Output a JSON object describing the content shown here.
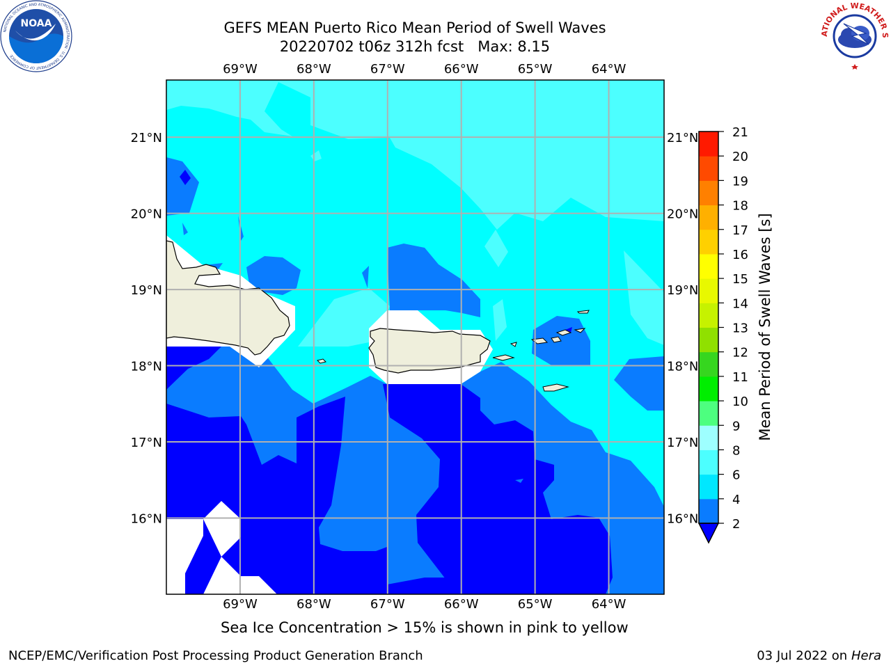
{
  "header": {
    "title": "GEFS MEAN Puerto Rico Mean Period of Swell Waves",
    "subtitle": "20220702 t06z 312h fcst   Max: 8.15"
  },
  "logos": {
    "noaa_text": "NOAA",
    "noaa_ring_text": "NATIONAL OCEANIC AND ATMOSPHERIC ADMINISTRATION · U.S. DEPARTMENT OF COMMERCE",
    "nws_ring_text": "NATIONAL WEATHER SERVICE"
  },
  "map": {
    "lon_labels": [
      "69°W",
      "68°W",
      "67°W",
      "66°W",
      "65°W",
      "64°W"
    ],
    "lat_labels": [
      "21°N",
      "20°N",
      "19°N",
      "18°N",
      "17°N",
      "16°N"
    ],
    "lon_values": [
      -69,
      -68,
      -67,
      -66,
      -65,
      -64
    ],
    "lat_values": [
      21,
      20,
      19,
      18,
      17,
      16
    ],
    "extent": {
      "lon_min": -70.0,
      "lon_max": -63.25,
      "lat_min": 15.0,
      "lat_max": 21.75
    },
    "gridlines": true
  },
  "colorbar": {
    "label": "Mean Period of Swell Waves [s]",
    "ticks": [
      "2",
      "4",
      "6",
      "8",
      "9",
      "10",
      "11",
      "12",
      "13",
      "14",
      "15",
      "16",
      "17",
      "18",
      "19",
      "20",
      "21"
    ],
    "colors": [
      "#0000ff",
      "#0a7cff",
      "#00e7ff",
      "#4cffff",
      "#9effff",
      "#4dff7f",
      "#00ee00",
      "#36d61f",
      "#90e000",
      "#c6f200",
      "#e8f800",
      "#ffff00",
      "#ffd000",
      "#ffb000",
      "#ff8000",
      "#ff4a00",
      "#ff1a00",
      "#ff0000"
    ],
    "extend_low_color": "#0000ff"
  },
  "colors": {
    "land": "#efefdc",
    "band_lt_2": "#0000ff",
    "band_2_4": "#0a7cff",
    "band_4_6": "#00ffff",
    "band_6_8": "#4cffff",
    "grid": "#b0b0b0"
  },
  "caption": "Sea Ice Concentration > 15% is shown in pink to yellow",
  "footer": {
    "left": "NCEP/EMC/Verification Post Processing Product Generation Branch",
    "right_prefix": "03 Jul 2022 on ",
    "right_host": "Hera"
  }
}
